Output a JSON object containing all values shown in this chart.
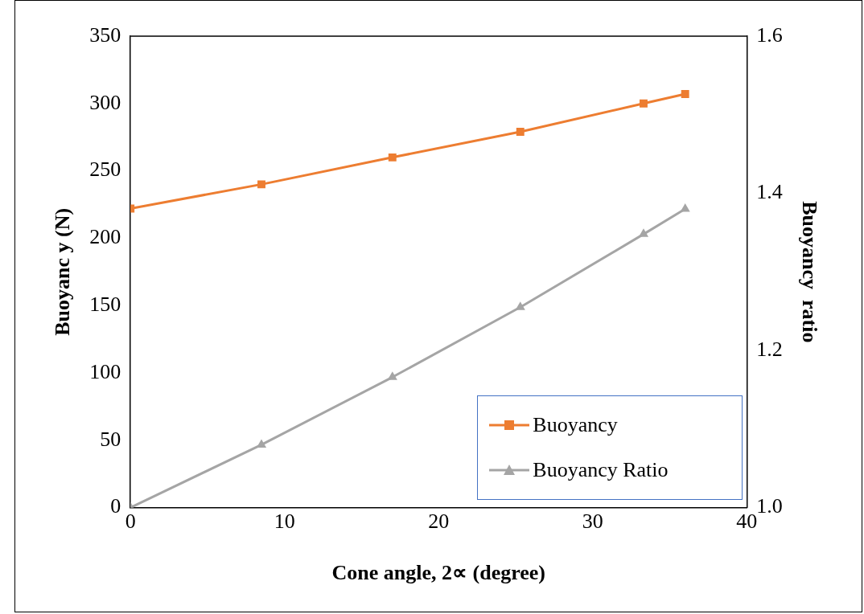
{
  "chart_data": {
    "type": "line",
    "xlabel": "Cone angle, 2∝ (degree)",
    "ylabel": "Buoyanc y (N)",
    "y2label": "Buoyancy  ratio",
    "xlim": [
      0,
      40
    ],
    "xticks": [
      0,
      10,
      20,
      30,
      40
    ],
    "ylim": [
      0,
      350
    ],
    "yticks": [
      0,
      50,
      100,
      150,
      200,
      250,
      300,
      350
    ],
    "y2lim": [
      1,
      1.6
    ],
    "y2ticks": [
      {
        "value": 1,
        "label": "1.0"
      },
      {
        "value": 1.2,
        "label": "1.2"
      },
      {
        "value": 1.4,
        "label": "1.4"
      },
      {
        "value": 1.6,
        "label": "1.6"
      }
    ],
    "grid": false,
    "legend": "bottom right",
    "line_style": "solid",
    "series": [
      {
        "name": "Buoyancy",
        "color": "#ed7d31",
        "marker": "square",
        "x": [
          0,
          8.5,
          17,
          25.3,
          33.3,
          36
        ],
        "values": [
          222,
          240,
          260,
          279,
          300,
          307
        ]
      },
      {
        "name": "Buoyancy Ratio",
        "color": "#a5a5a5",
        "marker": "triangle",
        "axis": "y2",
        "x": [
          0,
          8.5,
          17,
          25.3,
          33.3,
          36
        ],
        "values": [
          1,
          1.08,
          1.166,
          1.255,
          1.348,
          1.38
        ]
      }
    ]
  }
}
